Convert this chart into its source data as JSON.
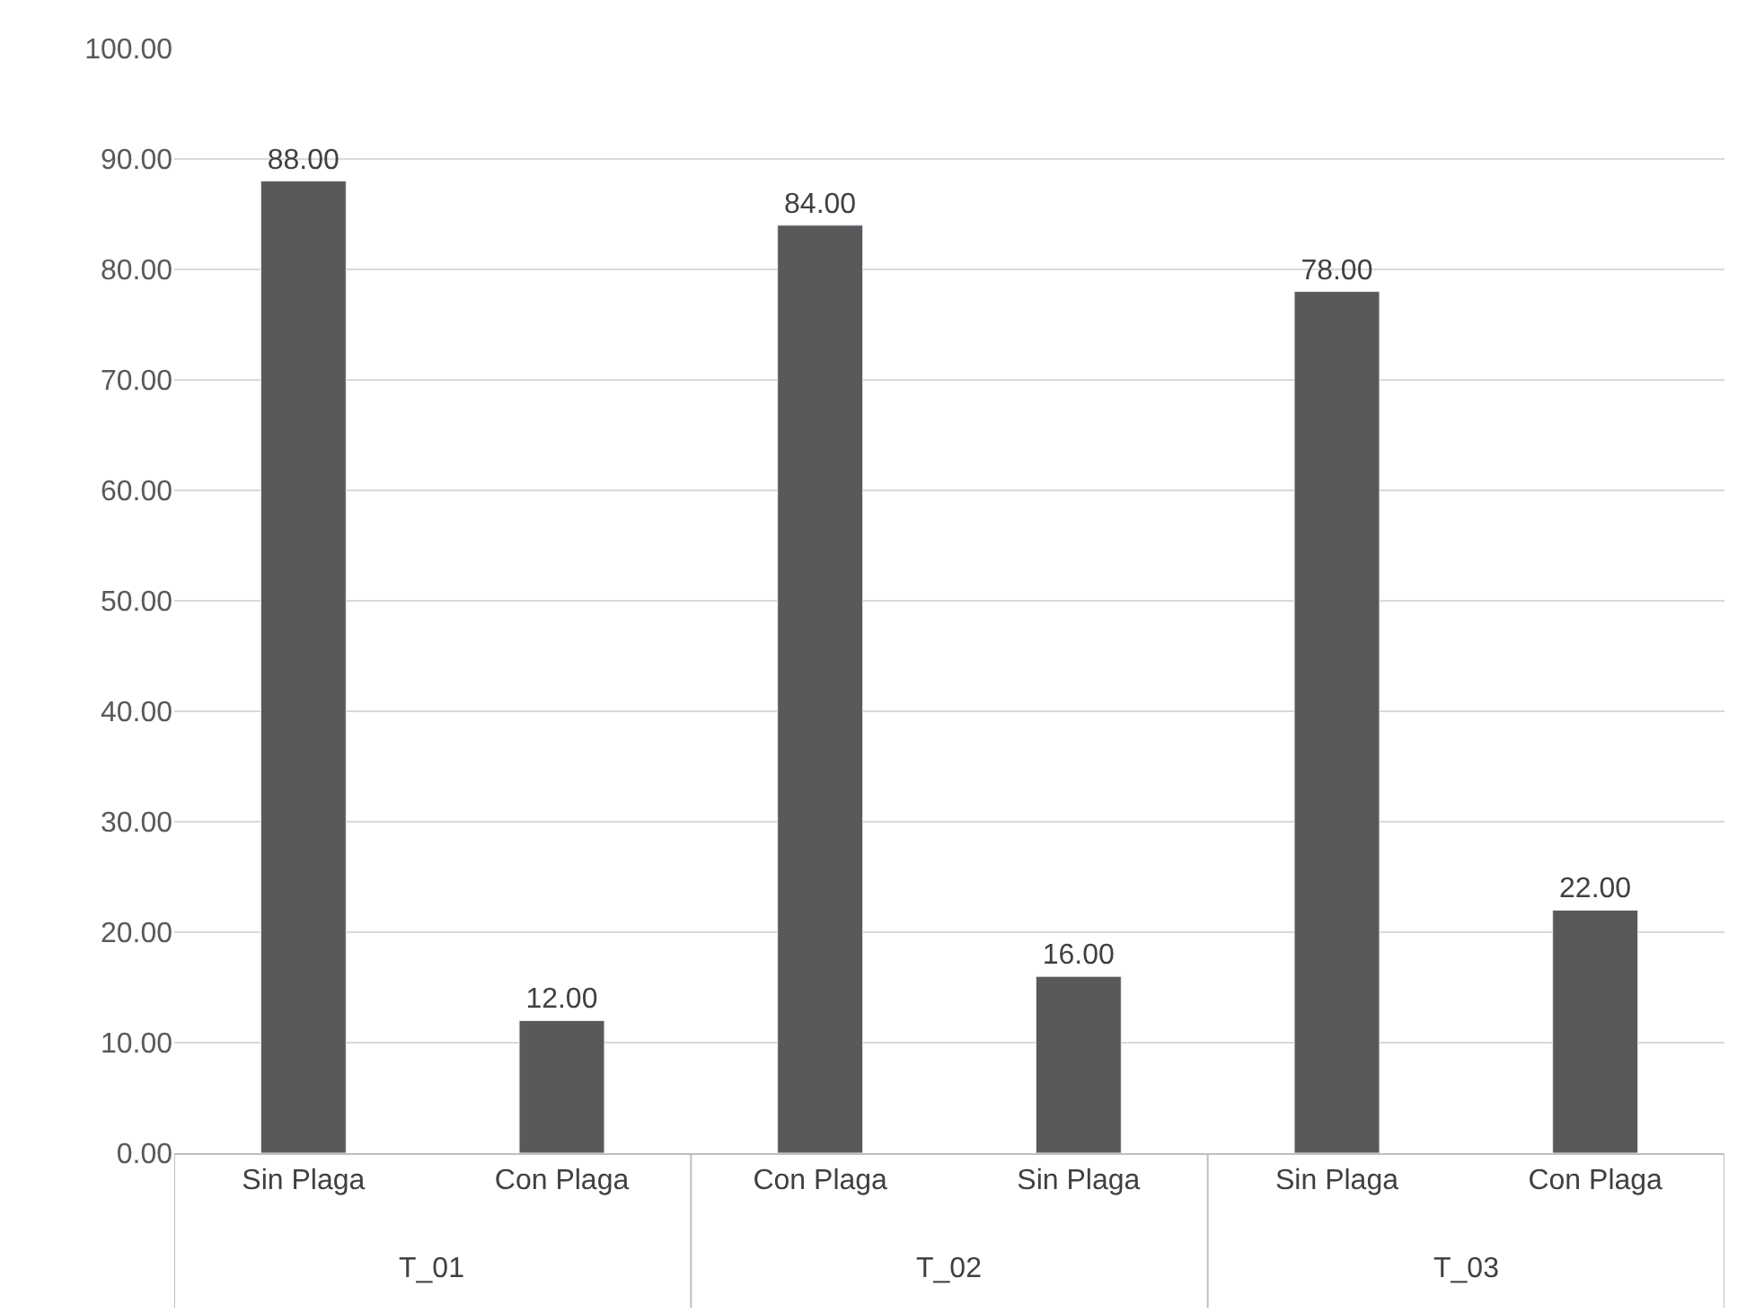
{
  "chart_data": {
    "type": "bar",
    "categories": [
      "Sin Plaga",
      "Con Plaga",
      "Con Plaga",
      "Sin Plaga",
      "Sin Plaga",
      "Con Plaga"
    ],
    "values": [
      88,
      12,
      84,
      16,
      78,
      22
    ],
    "value_labels": [
      "88.00",
      "12.00",
      "84.00",
      "16.00",
      "78.00",
      "22.00"
    ],
    "color": "#595959",
    "ylim": [
      0,
      100
    ],
    "yticks": [
      {
        "value": 0,
        "label": "0.00"
      },
      {
        "value": 10,
        "label": "10.00"
      },
      {
        "value": 20,
        "label": "20.00"
      },
      {
        "value": 30,
        "label": "30.00"
      },
      {
        "value": 40,
        "label": "40.00"
      },
      {
        "value": 50,
        "label": "50.00"
      },
      {
        "value": 60,
        "label": "60.00"
      },
      {
        "value": 70,
        "label": "70.00"
      },
      {
        "value": 80,
        "label": "80.00"
      },
      {
        "value": 90,
        "label": "90.00"
      },
      {
        "value": 100,
        "label": "100.00"
      }
    ],
    "grid": "y",
    "annotations": [
      "T_01",
      "T_02",
      "T_03"
    ]
  }
}
